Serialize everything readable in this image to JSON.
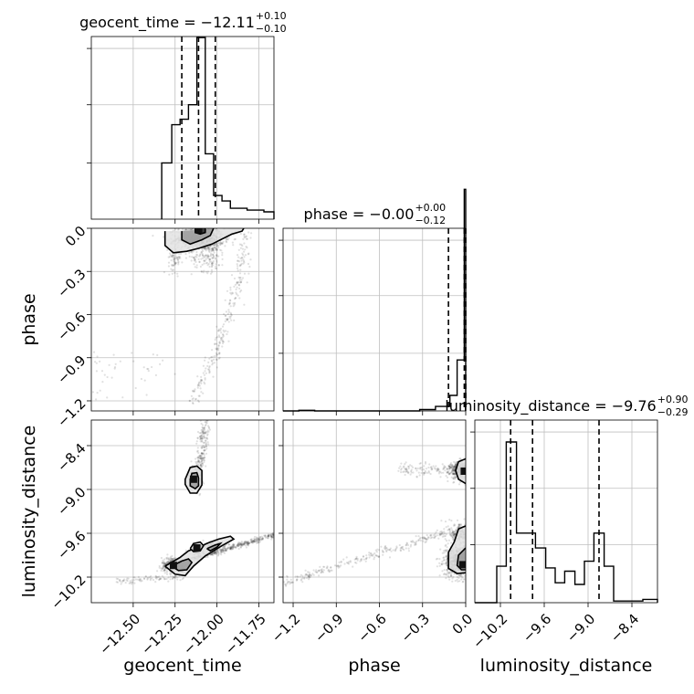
{
  "chart_data": {
    "type": "corner",
    "parameters": [
      {
        "name": "geocent_time",
        "title": {
          "lead": "geocent_time = −12.11",
          "plus": "+0.10",
          "minus": "−0.10"
        },
        "range": [
          -12.75,
          -11.66
        ],
        "ticks": [
          -12.5,
          -12.25,
          -12.0,
          -11.75
        ],
        "tick_labels": [
          "−12.50",
          "−12.25",
          "−12.00",
          "−11.75"
        ],
        "quantiles": [
          -12.21,
          -12.11,
          -12.01
        ],
        "histogram": {
          "edges": [
            -12.33,
            -12.27,
            -12.22,
            -12.17,
            -12.12,
            -12.07,
            -12.02,
            -11.97,
            -11.92,
            -11.87,
            -11.82,
            -11.77,
            -11.72,
            -11.66
          ],
          "counts": [
            0.31,
            0.52,
            0.55,
            0.63,
            1.0,
            0.36,
            0.13,
            0.1,
            0.06,
            0.06,
            0.05,
            0.05,
            0.04
          ],
          "yticks": [
            0.31,
            0.63,
            0.94
          ]
        }
      },
      {
        "name": "phase",
        "title": {
          "lead": "phase = −0.00",
          "plus": "+0.00",
          "minus": "−0.12"
        },
        "range": [
          -1.27,
          0.0
        ],
        "ticks": [
          -1.2,
          -0.9,
          -0.6,
          -0.3,
          0.0
        ],
        "tick_labels": [
          "−1.2",
          "−0.9",
          "−0.6",
          "−0.3",
          "0.0"
        ],
        "quantiles": [
          -0.12,
          -0.01,
          0.0
        ],
        "histogram": {
          "edges": [
            -1.27,
            -1.16,
            -1.05,
            -0.95,
            -0.84,
            -0.74,
            -0.63,
            -0.53,
            -0.42,
            -0.32,
            -0.21,
            -0.11,
            -0.06,
            -0.01,
            0.0
          ],
          "counts": [
            0.0,
            0.003,
            0.0,
            0.0,
            0.0,
            0.0,
            0.0,
            0.0,
            0.0,
            0.006,
            0.02,
            0.07,
            0.23,
            1.0
          ],
          "yticks": [
            0.26,
            0.52,
            0.77
          ]
        }
      },
      {
        "name": "luminosity_distance",
        "title": {
          "lead": "luminosity_distance = −9.76",
          "plus": "+0.90",
          "minus": "−0.29"
        },
        "range": [
          -10.55,
          -8.05
        ],
        "ticks": [
          -10.2,
          -9.6,
          -9.0,
          -8.4
        ],
        "tick_labels": [
          "−10.2",
          "−9.6",
          "−9.0",
          "−8.4"
        ],
        "quantiles": [
          -10.06,
          -9.76,
          -8.85
        ],
        "histogram": {
          "edges": [
            -10.55,
            -10.25,
            -10.12,
            -9.98,
            -9.85,
            -9.72,
            -9.58,
            -9.45,
            -9.32,
            -9.18,
            -9.05,
            -8.92,
            -8.78,
            -8.65,
            -8.52,
            -8.38,
            -8.25,
            -8.05
          ],
          "counts": [
            0.0,
            0.22,
            0.97,
            0.42,
            0.42,
            0.33,
            0.21,
            0.12,
            0.19,
            0.11,
            0.25,
            0.42,
            0.22,
            0.01,
            0.01,
            0.01,
            0.02
          ],
          "yticks": [
            0.35,
            0.69,
            1.03
          ]
        }
      }
    ],
    "contours": {
      "geocent_time__phase": [
        {
          "level": "outer",
          "points": [
            [
              -12.31,
              -0.02
            ],
            [
              -12.31,
              -0.12
            ],
            [
              -12.26,
              -0.17
            ],
            [
              -12.18,
              -0.16
            ],
            [
              -12.11,
              -0.14
            ],
            [
              -12.03,
              -0.11
            ],
            [
              -11.91,
              -0.04
            ],
            [
              -11.85,
              -0.02
            ],
            [
              -11.84,
              0.0
            ]
          ]
        },
        {
          "level": "inner",
          "points": [
            [
              -12.21,
              -0.02
            ],
            [
              -12.21,
              -0.08
            ],
            [
              -12.16,
              -0.11
            ],
            [
              -12.09,
              -0.08
            ],
            [
              -12.04,
              -0.05
            ],
            [
              -12.02,
              0.0
            ]
          ]
        },
        {
          "level": "core",
          "points": [
            [
              -12.13,
              0.0
            ],
            [
              -12.13,
              -0.03
            ],
            [
              -12.1,
              -0.04
            ],
            [
              -12.07,
              -0.03
            ],
            [
              -12.07,
              0.0
            ]
          ]
        }
      ],
      "geocent_time__luminosity_distance": [
        {
          "level": "outer",
          "points": [
            [
              -12.19,
              -8.86
            ],
            [
              -12.16,
              -8.7
            ],
            [
              -12.12,
              -8.68
            ],
            [
              -12.09,
              -8.74
            ],
            [
              -12.09,
              -8.94
            ],
            [
              -12.12,
              -9.05
            ],
            [
              -12.16,
              -9.05
            ],
            [
              -12.19,
              -8.93
            ],
            [
              -12.19,
              -8.86
            ]
          ]
        },
        {
          "level": "inner",
          "points": [
            [
              -12.16,
              -8.86
            ],
            [
              -12.15,
              -8.78
            ],
            [
              -12.12,
              -8.77
            ],
            [
              -12.11,
              -8.84
            ],
            [
              -12.11,
              -8.95
            ],
            [
              -12.13,
              -8.99
            ],
            [
              -12.16,
              -8.95
            ],
            [
              -12.16,
              -8.86
            ]
          ]
        },
        {
          "level": "outer",
          "points": [
            [
              -12.31,
              -10.05
            ],
            [
              -12.22,
              -9.93
            ],
            [
              -12.17,
              -9.84
            ],
            [
              -12.12,
              -9.8
            ],
            [
              -12.05,
              -9.73
            ],
            [
              -11.99,
              -9.68
            ],
            [
              -11.92,
              -9.64
            ],
            [
              -11.9,
              -9.68
            ],
            [
              -11.97,
              -9.77
            ],
            [
              -12.07,
              -9.91
            ],
            [
              -12.14,
              -10.05
            ],
            [
              -12.19,
              -10.18
            ],
            [
              -12.25,
              -10.16
            ],
            [
              -12.31,
              -10.05
            ]
          ]
        },
        {
          "level": "inner",
          "points": [
            [
              -12.27,
              -10.05
            ],
            [
              -12.21,
              -9.98
            ],
            [
              -12.17,
              -9.95
            ],
            [
              -12.15,
              -10.0
            ],
            [
              -12.18,
              -10.1
            ],
            [
              -12.23,
              -10.11
            ],
            [
              -12.27,
              -10.05
            ]
          ]
        },
        {
          "level": "inner",
          "points": [
            [
              -12.06,
              -9.81
            ],
            [
              -12.01,
              -9.76
            ],
            [
              -11.98,
              -9.74
            ],
            [
              -12.0,
              -9.79
            ],
            [
              -12.04,
              -9.84
            ],
            [
              -12.06,
              -9.81
            ]
          ]
        },
        {
          "level": "outer",
          "points": [
            [
              -12.16,
              -9.81
            ],
            [
              -12.14,
              -9.74
            ],
            [
              -12.1,
              -9.72
            ],
            [
              -12.08,
              -9.77
            ],
            [
              -12.1,
              -9.84
            ],
            [
              -12.14,
              -9.85
            ],
            [
              -12.16,
              -9.81
            ]
          ]
        }
      ],
      "phase__luminosity_distance": [
        {
          "level": "outer",
          "points": [
            [
              0.0,
              -8.58
            ],
            [
              -0.05,
              -8.62
            ],
            [
              -0.07,
              -8.74
            ],
            [
              -0.05,
              -8.86
            ],
            [
              0.0,
              -8.92
            ]
          ]
        },
        {
          "level": "outer",
          "points": [
            [
              0.0,
              -9.5
            ],
            [
              -0.05,
              -9.54
            ],
            [
              -0.08,
              -9.72
            ],
            [
              -0.12,
              -9.86
            ],
            [
              -0.12,
              -10.08
            ],
            [
              -0.06,
              -10.15
            ],
            [
              0.0,
              -10.14
            ]
          ]
        },
        {
          "level": "inner",
          "points": [
            [
              0.0,
              -9.8
            ],
            [
              -0.05,
              -9.9
            ],
            [
              -0.06,
              -10.04
            ],
            [
              -0.03,
              -10.1
            ],
            [
              0.0,
              -10.1
            ]
          ]
        }
      ]
    },
    "colors": {
      "hist": "#000000",
      "quantile": "#000000",
      "grid": "#bfbfbf",
      "scatter": "#000000"
    }
  }
}
